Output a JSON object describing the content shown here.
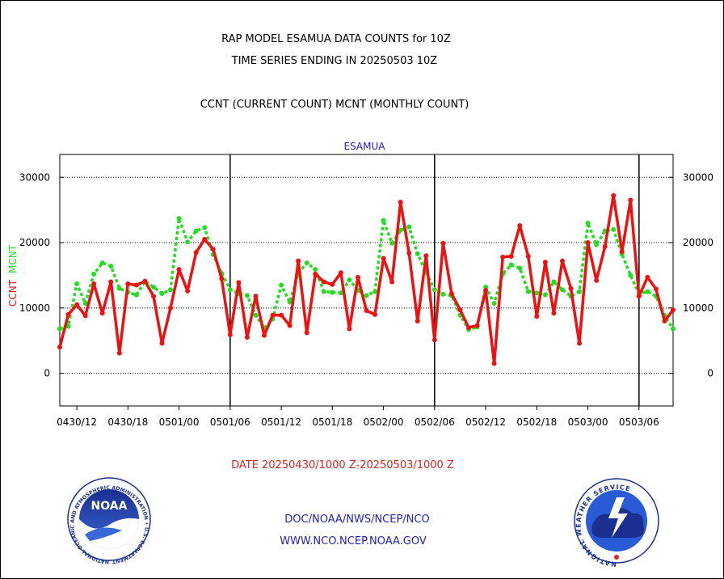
{
  "header": {
    "line1": "RAP MODEL ESAMUA DATA COUNTS for 10Z",
    "line2": "TIME SERIES ENDING IN 20250503 10Z",
    "line3": "CCNT (CURRENT COUNT) MCNT (MONTHLY COUNT)"
  },
  "footer": {
    "date_range": "DATE 20250430/1000 Z-20250503/1000 Z",
    "org": "DOC/NOAA/NWS/NCEP/NCO",
    "url": "WWW.NCO.NCEP.NOAA.GOV"
  },
  "logos": {
    "left": {
      "text": "NOAA",
      "ring_text": "NATIONAL OCEANIC AND ATMOSPHERIC ADMINISTRATION • U.S. DEPARTMENT OF COMMERCE •"
    },
    "right": {
      "ring_text": "NATIONAL WEATHER SERVICE"
    }
  },
  "colors": {
    "ccnt": "#ee1111",
    "mcnt": "#22dd22",
    "title_blue": "#2222bb",
    "footer_red": "#dd2222",
    "footer_blue": "#2222bb"
  },
  "chart_data": {
    "type": "line",
    "title": "ESAMUA",
    "ylabel_parts": [
      {
        "text": "CCNT",
        "color": "#ee1111"
      },
      {
        "text": "MCNT",
        "color": "#22dd22"
      }
    ],
    "ylim": [
      -5000,
      33500
    ],
    "yticks": [
      0,
      10000,
      20000,
      30000
    ],
    "ytick_labels": [
      "0",
      "10000",
      "20000",
      "30000"
    ],
    "x_index_range": [
      0,
      72
    ],
    "xticks": [
      2,
      8,
      14,
      20,
      26,
      32,
      38,
      44,
      50,
      56,
      62,
      68
    ],
    "xtick_labels": [
      "0430/12",
      "0430/18",
      "0501/00",
      "0501/06",
      "0501/12",
      "0501/18",
      "0502/00",
      "0502/06",
      "0502/12",
      "0502/18",
      "0503/00",
      "0503/06"
    ],
    "day_dividers": [
      20,
      44,
      68
    ],
    "gridlines": [
      0,
      10000,
      20000,
      30000
    ],
    "series": [
      {
        "name": "CCNT",
        "style": "solid",
        "values": [
          4000,
          9000,
          10500,
          8800,
          13700,
          9200,
          14000,
          3100,
          13700,
          13500,
          14100,
          11800,
          4600,
          10000,
          15900,
          12600,
          18500,
          20500,
          19000,
          14500,
          5900,
          13900,
          5500,
          11800,
          5800,
          8900,
          8900,
          7300,
          17200,
          6200,
          15200,
          14000,
          13600,
          15400,
          6800,
          14700,
          9600,
          9000,
          17600,
          14000,
          26200,
          18400,
          8000,
          18000,
          5100,
          19900,
          12200,
          9700,
          7000,
          7300,
          12700,
          1500,
          17800,
          17900,
          22600,
          17900,
          8700,
          17000,
          9200,
          17200,
          13000,
          4600,
          20000,
          14200,
          19400,
          27200,
          18600,
          26500,
          11800,
          14700,
          12900,
          8000,
          9700
        ]
      },
      {
        "name": "MCNT",
        "style": "dotted",
        "values": [
          6800,
          7200,
          13700,
          10700,
          15200,
          16900,
          16400,
          13000,
          12400,
          12000,
          14100,
          13200,
          12200,
          12800,
          23700,
          20100,
          21800,
          22300,
          18200,
          15300,
          12800,
          12200,
          11900,
          8900,
          6900,
          8300,
          13500,
          10900,
          15300,
          16900,
          15900,
          12500,
          12400,
          12300,
          14300,
          12700,
          11900,
          12500,
          23400,
          19900,
          21900,
          22400,
          18300,
          15500,
          12800,
          12100,
          11900,
          8900,
          6700,
          7100,
          13200,
          10700,
          15200,
          16600,
          16100,
          12500,
          12300,
          12000,
          14000,
          12800,
          11800,
          12500,
          23000,
          19700,
          21800,
          22000,
          18200,
          15000,
          12200,
          12500,
          11800,
          8900,
          6800
        ]
      }
    ]
  }
}
